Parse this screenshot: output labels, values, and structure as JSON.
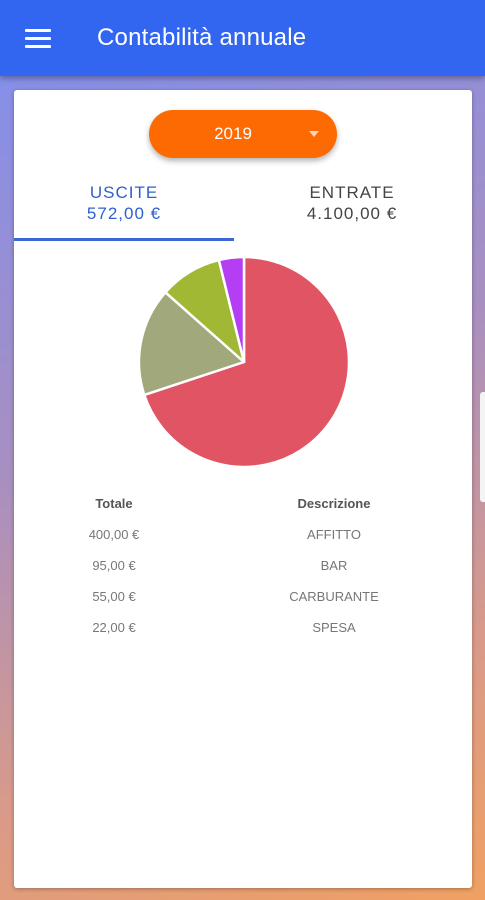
{
  "header": {
    "title": "Contabilità annuale",
    "menu_icon": "hamburger-menu-icon"
  },
  "year_selector": {
    "value": "2019"
  },
  "tabs": [
    {
      "label": "USCITE",
      "amount": "572,00 €",
      "selected": true
    },
    {
      "label": "ENTRATE",
      "amount": "4.100,00 €",
      "selected": false
    }
  ],
  "chart_data": {
    "type": "pie",
    "categories": [
      "AFFITTO",
      "BAR",
      "CARBURANTE",
      "SPESA"
    ],
    "values": [
      400,
      95,
      55,
      22
    ],
    "colors": [
      "#e05464",
      "#a1a87c",
      "#a0b833",
      "#b53df3"
    ],
    "unit": "€"
  },
  "table": {
    "columns": [
      "Totale",
      "Descrizione"
    ],
    "rows": [
      {
        "total": "400,00 €",
        "description": "AFFITTO"
      },
      {
        "total": "95,00 €",
        "description": "BAR"
      },
      {
        "total": "55,00 €",
        "description": "CARBURANTE"
      },
      {
        "total": "22,00 €",
        "description": "SPESA"
      }
    ]
  },
  "colors": {
    "appbar": "#3366f0",
    "accent_orange": "#fd6a02",
    "tab_selected": "#2f5fcf"
  }
}
